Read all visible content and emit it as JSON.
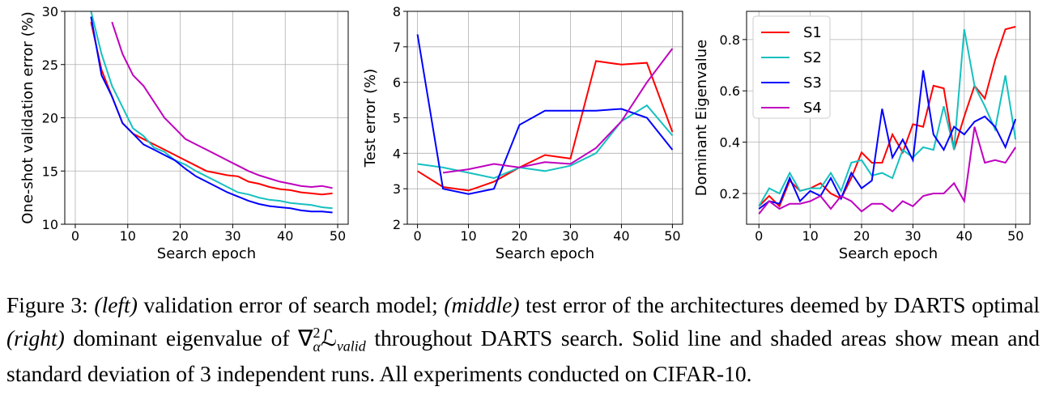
{
  "chart_data": [
    {
      "type": "line",
      "xlabel": "Search epoch",
      "ylabel": "One-shot validation error (%)",
      "x": [
        3,
        5,
        7,
        9,
        11,
        13,
        15,
        17,
        19,
        21,
        23,
        25,
        27,
        29,
        31,
        33,
        35,
        37,
        39,
        41,
        43,
        45,
        47,
        49
      ],
      "series": [
        {
          "color": "#ff0000",
          "values": [
            29,
            24.5,
            22,
            19.5,
            18.5,
            18,
            17.5,
            17,
            16.5,
            16,
            15.5,
            15,
            14.8,
            14.6,
            14.5,
            14,
            13.8,
            13.5,
            13.3,
            13.2,
            13,
            12.9,
            12.8,
            12.9
          ]
        },
        {
          "color": "#17c0c0",
          "values": [
            30,
            26,
            23,
            21,
            19,
            18.3,
            17.2,
            16.8,
            16,
            15.6,
            15,
            14.5,
            14,
            13.5,
            13,
            12.8,
            12.5,
            12.3,
            12.2,
            12,
            11.9,
            11.8,
            11.6,
            11.5
          ]
        },
        {
          "color": "#0000ff",
          "values": [
            29.5,
            24,
            22,
            19.5,
            18.5,
            17.5,
            17,
            16.5,
            16,
            15.2,
            14.5,
            14,
            13.5,
            13,
            12.6,
            12.2,
            11.9,
            11.7,
            11.6,
            11.5,
            11.3,
            11.2,
            11.2,
            11.1
          ]
        },
        {
          "color": "#bf00bf",
          "values": [
            null,
            null,
            29,
            26,
            24,
            23,
            21.5,
            20,
            19,
            18,
            17.5,
            17,
            16.5,
            16,
            15.5,
            15,
            14.6,
            14.3,
            14,
            13.8,
            13.6,
            13.5,
            13.6,
            13.4
          ]
        }
      ],
      "xlim": [
        -2,
        52
      ],
      "ylim": [
        10,
        30
      ],
      "xticks": [
        0,
        10,
        20,
        30,
        40,
        50
      ],
      "yticks": [
        10,
        15,
        20,
        25,
        30
      ],
      "grid": true
    },
    {
      "type": "line",
      "xlabel": "Search epoch",
      "ylabel": "Test error (%)",
      "x": [
        0,
        5,
        10,
        15,
        20,
        25,
        30,
        35,
        40,
        45,
        50
      ],
      "series": [
        {
          "color": "#ff0000",
          "values": [
            3.5,
            3.05,
            2.95,
            3.2,
            3.6,
            3.95,
            3.85,
            6.6,
            6.5,
            6.55,
            4.6
          ]
        },
        {
          "color": "#17c0c0",
          "values": [
            3.7,
            3.6,
            3.45,
            3.3,
            3.6,
            3.5,
            3.65,
            4,
            4.9,
            5.35,
            4.5
          ]
        },
        {
          "color": "#0000ff",
          "values": [
            7.35,
            3.0,
            2.85,
            3.0,
            4.8,
            5.2,
            5.2,
            5.2,
            5.25,
            5.0,
            4.1
          ]
        },
        {
          "color": "#bf00bf",
          "values": [
            null,
            3.45,
            3.55,
            3.7,
            3.6,
            3.75,
            3.7,
            4.15,
            4.9,
            6.0,
            6.95
          ]
        }
      ],
      "xlim": [
        -2,
        52
      ],
      "ylim": [
        2,
        8
      ],
      "xticks": [
        0,
        10,
        20,
        30,
        40,
        50
      ],
      "yticks": [
        2,
        3,
        4,
        5,
        6,
        7,
        8
      ],
      "grid": true
    },
    {
      "type": "line",
      "xlabel": "Search epoch",
      "ylabel": "Dominant Eigenvalue",
      "x": [
        0,
        2,
        4,
        6,
        8,
        10,
        12,
        14,
        16,
        18,
        20,
        22,
        24,
        26,
        28,
        30,
        32,
        34,
        36,
        38,
        40,
        42,
        44,
        46,
        48,
        50
      ],
      "series": [
        {
          "name": "S1",
          "color": "#ff0000",
          "values": [
            0.15,
            0.19,
            0.15,
            0.25,
            0.21,
            0.22,
            0.24,
            0.2,
            0.18,
            0.26,
            0.36,
            0.32,
            0.32,
            0.43,
            0.36,
            0.47,
            0.46,
            0.62,
            0.61,
            0.37,
            0.5,
            0.62,
            0.57,
            0.72,
            0.84,
            0.85
          ]
        },
        {
          "name": "S2",
          "color": "#17c0c0",
          "values": [
            0.15,
            0.22,
            0.2,
            0.28,
            0.21,
            0.22,
            0.22,
            0.28,
            0.21,
            0.32,
            0.33,
            0.27,
            0.28,
            0.26,
            0.37,
            0.34,
            0.38,
            0.37,
            0.54,
            0.37,
            0.84,
            0.62,
            0.54,
            0.45,
            0.66,
            0.41
          ]
        },
        {
          "name": "S3",
          "color": "#0000ff",
          "values": [
            0.14,
            0.17,
            0.16,
            0.26,
            0.17,
            0.21,
            0.19,
            0.26,
            0.18,
            0.28,
            0.22,
            0.25,
            0.53,
            0.34,
            0.41,
            0.33,
            0.68,
            0.43,
            0.37,
            0.46,
            0.43,
            0.48,
            0.5,
            0.46,
            0.38,
            0.49
          ]
        },
        {
          "name": "S4",
          "color": "#bf00bf",
          "values": [
            0.12,
            0.17,
            0.14,
            0.16,
            0.16,
            0.17,
            0.19,
            0.14,
            0.19,
            0.17,
            0.13,
            0.16,
            0.16,
            0.13,
            0.17,
            0.15,
            0.19,
            0.2,
            0.2,
            0.24,
            0.17,
            0.46,
            0.32,
            0.33,
            0.32,
            0.38
          ]
        }
      ],
      "xlim": [
        -2.4,
        52.8
      ],
      "ylim": [
        0.08,
        0.91
      ],
      "xticks": [
        0,
        10,
        20,
        30,
        40,
        50
      ],
      "yticks": [
        0.2,
        0.4,
        0.6,
        0.8
      ],
      "grid": true,
      "legend": "upper left"
    }
  ],
  "caption": {
    "label": "Figure 3:",
    "left": "(left)",
    "t1": "validation error of search model;",
    "middle": "(middle)",
    "t2": "test error of the architectures deemed by DARTS optimal",
    "right": "(right)",
    "t3": "dominant eigenvalue of",
    "nabla": "∇",
    "sup": "2",
    "sub": "α",
    "loss": "ℒ",
    "sub2": "valid",
    "t4": "throughout DARTS search. Solid line and shaded areas show mean and standard deviation of 3 independent runs. All experiments conducted on CIFAR-10."
  }
}
